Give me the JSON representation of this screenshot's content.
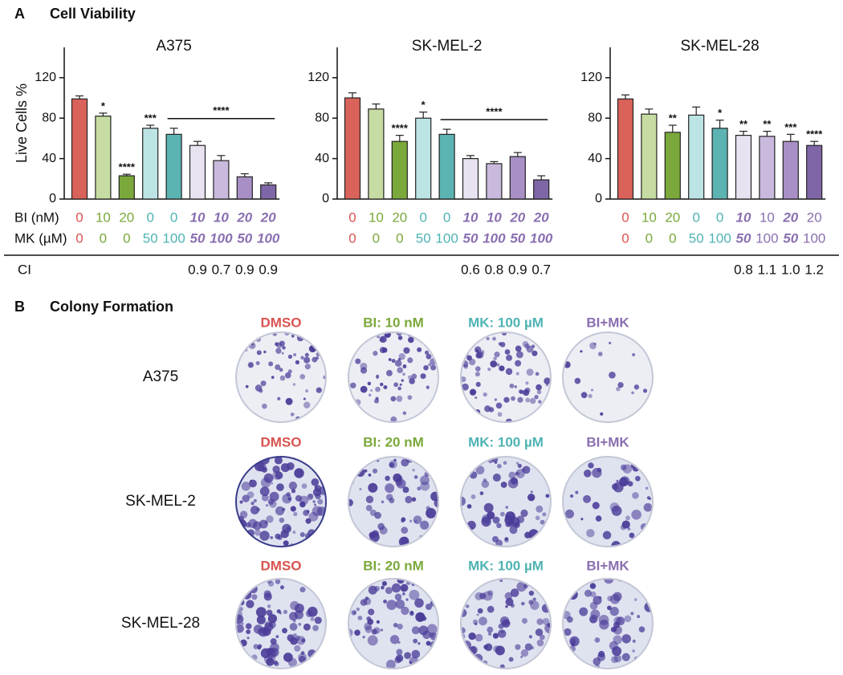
{
  "panel_a": {
    "label": "A",
    "title": "Cell Viability",
    "row_labels": [
      "BI (nM)",
      "MK (µM)",
      "CI"
    ]
  },
  "chart_data": [
    {
      "type": "bar",
      "title": "A375",
      "ylabel": "Live Cells %",
      "values": [
        99,
        82,
        23,
        70,
        64,
        53,
        38,
        22,
        14
      ],
      "errors": [
        3,
        3,
        1.5,
        3,
        6,
        4,
        5,
        3,
        2
      ],
      "colors": [
        "#d9625a",
        "#c6dca2",
        "#7aa83a",
        "#bde4e4",
        "#5bb3b2",
        "#e9e2f1",
        "#c9b9dd",
        "#a88fc5",
        "#7f66a7"
      ],
      "label_colors": [
        "#d9534f",
        "#7aa83a",
        "#7aa83a",
        "#4fb3b3",
        "#4fb3b3",
        "#8a6fb0",
        "#8a6fb0",
        "#8a6fb0",
        "#8a6fb0"
      ],
      "sig_labels": [
        null,
        "*",
        "****",
        "***",
        null,
        null,
        null,
        null,
        null
      ],
      "bracket_label": "****",
      "bi": [
        0,
        10,
        20,
        0,
        0,
        10,
        10,
        20,
        20
      ],
      "mk": [
        0,
        0,
        0,
        50,
        100,
        50,
        100,
        50,
        100
      ],
      "bold": [
        false,
        false,
        false,
        false,
        false,
        true,
        true,
        true,
        true
      ],
      "ci": [
        null,
        null,
        null,
        null,
        null,
        "0.9",
        "0.7",
        "0.9",
        "0.9"
      ],
      "ylim": [
        0,
        150
      ],
      "yticks": [
        0,
        40,
        80,
        120
      ]
    },
    {
      "type": "bar",
      "title": "SK-MEL-2",
      "values": [
        100,
        89,
        57,
        80,
        64,
        40,
        35,
        42,
        19
      ],
      "errors": [
        5,
        5,
        6,
        6,
        5,
        3,
        2,
        4,
        4
      ],
      "colors": [
        "#d9625a",
        "#c6dca2",
        "#7aa83a",
        "#bde4e4",
        "#5bb3b2",
        "#e9e2f1",
        "#c9b9dd",
        "#a88fc5",
        "#7f66a7"
      ],
      "label_colors": [
        "#d9534f",
        "#7aa83a",
        "#7aa83a",
        "#4fb3b3",
        "#4fb3b3",
        "#8a6fb0",
        "#8a6fb0",
        "#8a6fb0",
        "#8a6fb0"
      ],
      "sig_labels": [
        null,
        null,
        "****",
        "*",
        null,
        null,
        null,
        null,
        null
      ],
      "bracket_label": "****",
      "bi": [
        0,
        10,
        20,
        0,
        0,
        10,
        10,
        20,
        20
      ],
      "mk": [
        0,
        0,
        0,
        50,
        100,
        50,
        100,
        50,
        100
      ],
      "bold": [
        false,
        false,
        false,
        false,
        false,
        true,
        true,
        true,
        true
      ],
      "ci": [
        null,
        null,
        null,
        null,
        null,
        "0.6",
        "0.8",
        "0.9",
        "0.7"
      ],
      "ylim": [
        0,
        150
      ],
      "yticks": [
        0,
        40,
        80,
        120
      ]
    },
    {
      "type": "bar",
      "title": "SK-MEL-28",
      "values": [
        99,
        84,
        66,
        83,
        70,
        63,
        62,
        57,
        53
      ],
      "errors": [
        4,
        5,
        7,
        8,
        8,
        4,
        5,
        7,
        4
      ],
      "colors": [
        "#d9625a",
        "#c6dca2",
        "#7aa83a",
        "#bde4e4",
        "#5bb3b2",
        "#e9e2f1",
        "#c9b9dd",
        "#a88fc5",
        "#7f66a7"
      ],
      "label_colors": [
        "#d9534f",
        "#7aa83a",
        "#7aa83a",
        "#4fb3b3",
        "#4fb3b3",
        "#8a6fb0",
        "#8a6fb0",
        "#8a6fb0",
        "#8a6fb0"
      ],
      "sig_labels": [
        null,
        null,
        "**",
        null,
        "*",
        "**",
        "**",
        "***",
        "****"
      ],
      "bi": [
        0,
        10,
        20,
        0,
        0,
        10,
        10,
        20,
        20
      ],
      "mk": [
        0,
        0,
        0,
        50,
        100,
        50,
        100,
        50,
        100
      ],
      "bold": [
        false,
        false,
        false,
        false,
        false,
        true,
        false,
        true,
        false
      ],
      "ci": [
        null,
        null,
        null,
        null,
        null,
        "0.8",
        "1.1",
        "1.0",
        "1.2"
      ],
      "ylim": [
        0,
        150
      ],
      "yticks": [
        0,
        40,
        80,
        120
      ]
    }
  ],
  "panel_b": {
    "label": "B",
    "title": "Colony Formation",
    "header_colors": [
      "#d9534f",
      "#7aa83a",
      "#4fb3b3",
      "#8a6fb0"
    ],
    "rows": [
      {
        "name": "A375",
        "headers": [
          "DMSO",
          "BI: 10 nM",
          "MK: 100 µM",
          "BI+MK"
        ]
      },
      {
        "name": "SK-MEL-2",
        "headers": [
          "DMSO",
          "BI: 20 nM",
          "MK: 100 µM",
          "BI+MK"
        ]
      },
      {
        "name": "SK-MEL-28",
        "headers": [
          "DMSO",
          "BI: 20 nM",
          "MK: 100 µM",
          "BI+MK"
        ]
      }
    ]
  }
}
